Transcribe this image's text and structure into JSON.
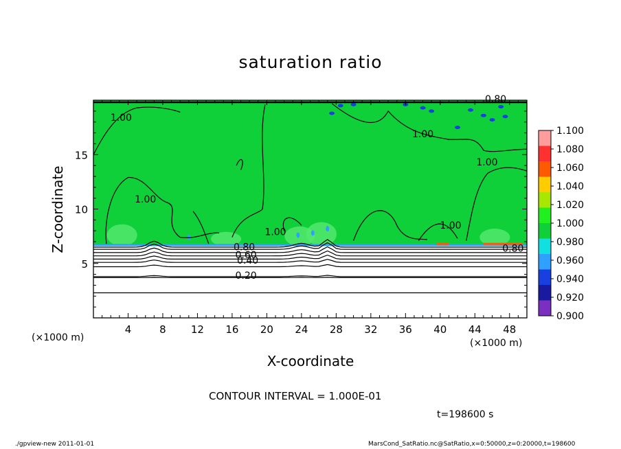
{
  "chart_data": {
    "type": "heatmap",
    "title": "saturation ratio",
    "xlabel": "X-coordinate",
    "ylabel": "Z-coordinate",
    "x_unit": "(×1000 m)",
    "x_unit_right": "(×1000 m)",
    "xlim": [
      0,
      50
    ],
    "ylim": [
      0,
      20
    ],
    "x_ticks": [
      "4",
      "8",
      "12",
      "16",
      "20",
      "24",
      "28",
      "32",
      "36",
      "40",
      "44",
      "48"
    ],
    "y_ticks": [
      "5",
      "10",
      "15"
    ],
    "colorbar": {
      "levels": [
        "0.900",
        "0.920",
        "0.940",
        "0.960",
        "0.980",
        "1.000",
        "1.020",
        "1.040",
        "1.060",
        "1.080",
        "1.100"
      ],
      "colors": [
        "#7a2fc0",
        "#1a1aa0",
        "#1840e0",
        "#30a0ff",
        "#10e0e0",
        "#10d03a",
        "#20f020",
        "#a8e800",
        "#ffcc00",
        "#ff5a00",
        "#ff3030",
        "#ff9c9c"
      ]
    },
    "contour_labels": [
      {
        "text": "1.00",
        "x": 3.2,
        "z": 18.1
      },
      {
        "text": "1.00",
        "x": 38.0,
        "z": 16.6
      },
      {
        "text": "1.00",
        "x": 45.4,
        "z": 14.0
      },
      {
        "text": "1.00",
        "x": 6.0,
        "z": 10.6
      },
      {
        "text": "1.00",
        "x": 21.0,
        "z": 7.6
      },
      {
        "text": "1.00",
        "x": 41.2,
        "z": 8.2
      },
      {
        "text": "0.80",
        "x": 46.4,
        "z": 19.8
      },
      {
        "text": "0.80",
        "x": 48.4,
        "z": 6.1
      },
      {
        "text": "0.80",
        "x": 17.4,
        "z": 6.2
      },
      {
        "text": "0.60",
        "x": 17.6,
        "z": 5.5
      },
      {
        "text": "0.40",
        "x": 17.8,
        "z": 5.0
      },
      {
        "text": "0.20",
        "x": 17.6,
        "z": 3.6
      }
    ],
    "saturated_layer_base_z": 6.6,
    "lower_contour_levels_z": [
      6.5,
      6.3,
      6.0,
      5.7,
      5.4,
      5.1,
      4.7,
      3.8,
      3.7,
      2.3
    ]
  },
  "labels": {
    "contour_interval": "CONTOUR INTERVAL = 1.000E-01",
    "time": "t=198600 s",
    "footer_left": "./gpview-new   2011-01-01",
    "footer_right": "MarsCond_SatRatio.nc@SatRatio,x=0:50000,z=0:20000,t=198600"
  }
}
